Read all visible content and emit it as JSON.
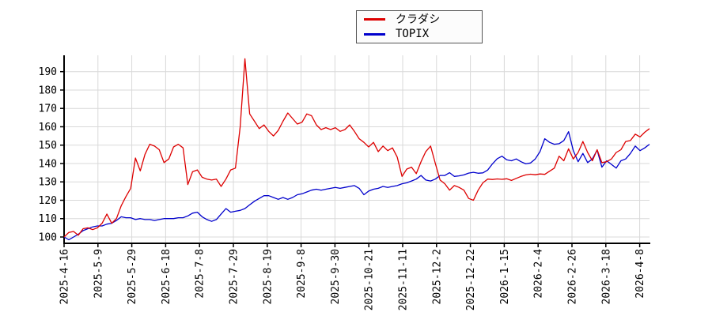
{
  "page": {
    "background": "#ffffff"
  },
  "chart_data": {
    "type": "line",
    "title": "",
    "grid": true,
    "grid_color": "#d9d9d9",
    "axis_color": "#000000",
    "legend": {
      "position": "top-center",
      "entries": [
        {
          "label": "クラダシ",
          "color": "#dd0000"
        },
        {
          "label": "TOPIX",
          "color": "#0000cc"
        }
      ]
    },
    "x": {
      "tick_labels": [
        "2025-4-16",
        "2025-5-9",
        "2025-5-29",
        "2025-6-18",
        "2025-7-8",
        "2025-7-29",
        "2025-8-19",
        "2025-9-8",
        "2025-9-30",
        "2025-10-21",
        "2025-11-11",
        "2025-12-2",
        "2025-12-22",
        "2026-1-15",
        "2026-2-4",
        "2026-2-26",
        "2026-3-18",
        "2026-4-8"
      ],
      "note": "series values are evenly spaced trading days from 2025-4-16 to just past 2026-4-8"
    },
    "y": {
      "ticks": [
        100,
        110,
        120,
        130,
        140,
        150,
        160,
        170,
        180,
        190
      ],
      "ylim": [
        96.5,
        199
      ],
      "base_value": 100
    },
    "series": [
      {
        "name": "クラダシ",
        "key": "kuradashi",
        "color": "#dd0000",
        "values": [
          100,
          102.5,
          103,
          101,
          104.5,
          105,
          104,
          105,
          107.5,
          112.5,
          107.5,
          110,
          117,
          122,
          126.5,
          143,
          136,
          145,
          150.5,
          149.5,
          147.5,
          140.5,
          142.5,
          149,
          150.5,
          148.5,
          128.5,
          135.5,
          136.5,
          132.5,
          131.5,
          131,
          131.5,
          127.5,
          131.5,
          136.5,
          137.5,
          160,
          197,
          167,
          163,
          159,
          161,
          157.5,
          155,
          158,
          163,
          167.5,
          164.5,
          161.5,
          162.5,
          167,
          166,
          161,
          158.5,
          159.5,
          158.5,
          159.5,
          157.5,
          158.5,
          161,
          157.5,
          153.5,
          151.5,
          149,
          151.5,
          146.5,
          149.5,
          147,
          148.5,
          143.5,
          133,
          137,
          138,
          134.5,
          141,
          146.5,
          149.5,
          140,
          131,
          129,
          125.5,
          128,
          127,
          125.5,
          121,
          120,
          125.5,
          129.5,
          131.5,
          131.3,
          131.6,
          131.4,
          131.7,
          130.8,
          131.9,
          133,
          133.8,
          134.2,
          133.9,
          134.3,
          134.1,
          135.8,
          137.5,
          144,
          141.5,
          148,
          142.5,
          146,
          152,
          146,
          141.5,
          147.5,
          140.5,
          141,
          142.5,
          146,
          147.5,
          152,
          152.5,
          156,
          154.5,
          157,
          159
        ]
      },
      {
        "name": "TOPIX",
        "key": "topix",
        "color": "#0000cc",
        "values": [
          100,
          98.5,
          100,
          101.5,
          103.5,
          104.5,
          105.5,
          106,
          106,
          107,
          107.5,
          109,
          111,
          110.5,
          110.5,
          109.5,
          110,
          109.5,
          109.5,
          109,
          109.5,
          110,
          110,
          110,
          110.5,
          110.5,
          111.5,
          113,
          113.5,
          111,
          109.5,
          108.5,
          109.5,
          112.5,
          115.5,
          113.5,
          114,
          114.5,
          115.5,
          117.5,
          119.5,
          121,
          122.5,
          122.5,
          121.5,
          120.5,
          121.5,
          120.5,
          121.5,
          123,
          123.5,
          124.5,
          125.5,
          126,
          125.5,
          126,
          126.5,
          127,
          126.5,
          127,
          127.5,
          128,
          126.5,
          123,
          125,
          126,
          126.5,
          127.5,
          127,
          127.5,
          128,
          129,
          129.5,
          130.5,
          131.5,
          133.5,
          131,
          130.5,
          131.5,
          133.5,
          133.5,
          135,
          133,
          133.3,
          133.8,
          134.8,
          135.2,
          134.7,
          134.9,
          136.4,
          139.8,
          142.6,
          144,
          142,
          141.5,
          142.5,
          141,
          139.8,
          140.3,
          142.5,
          146.5,
          153.5,
          151.5,
          150.5,
          150.8,
          152.5,
          157.3,
          147,
          141,
          145.5,
          140.5,
          142.5,
          147.3,
          138,
          141.5,
          139.5,
          137.5,
          141.5,
          142.5,
          145.5,
          149.5,
          147,
          148.5,
          150.5
        ]
      }
    ]
  }
}
